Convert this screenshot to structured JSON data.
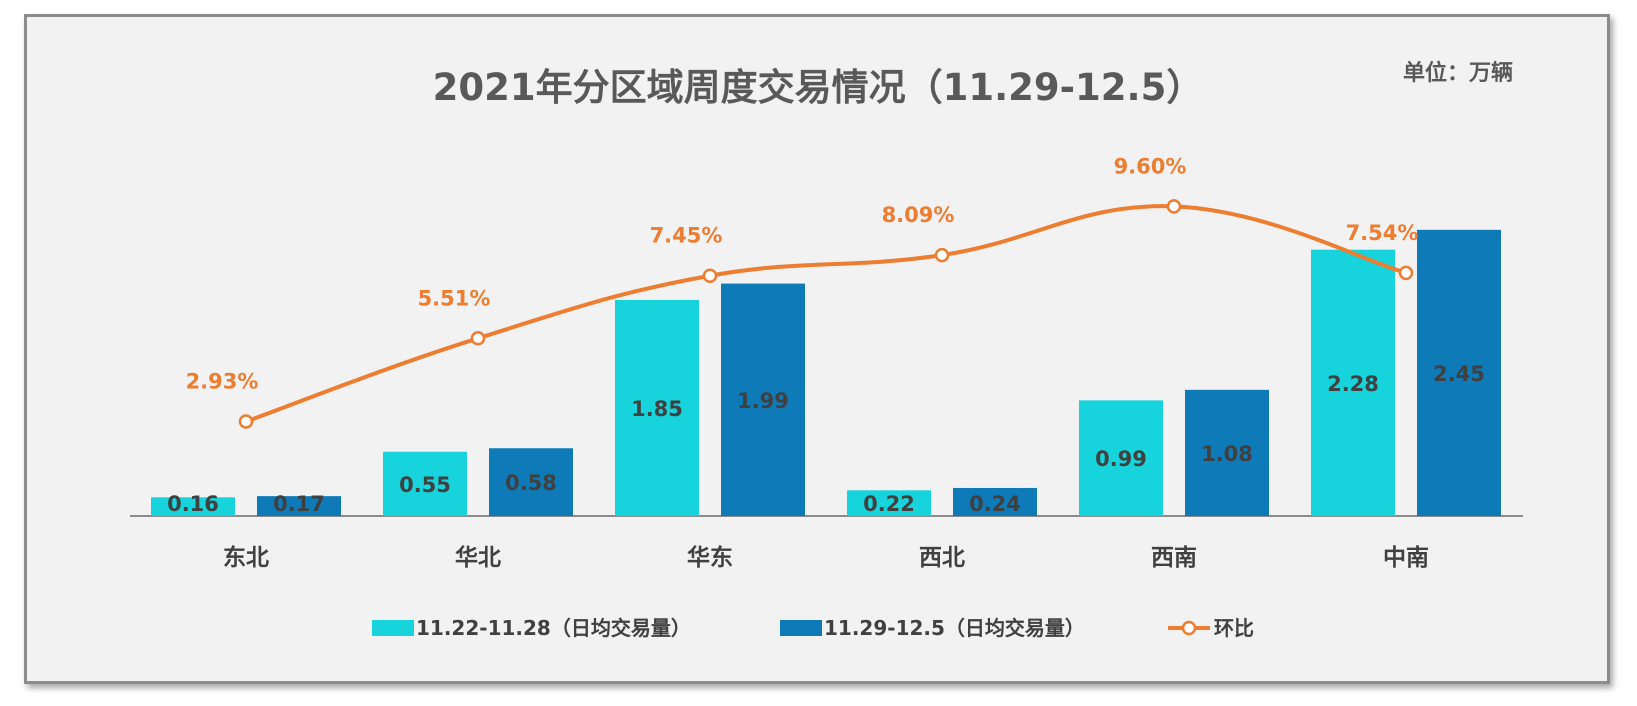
{
  "chart_data": {
    "type": "bar",
    "title": "2021年分区域周度交易情况（11.29-12.5）",
    "unit_label": "单位：万辆",
    "categories": [
      "东北",
      "华北",
      "华东",
      "西北",
      "西南",
      "中南"
    ],
    "series": [
      {
        "name": "11.22-11.28（日均交易量）",
        "type": "bar",
        "color": "#17d4dc",
        "values": [
          0.16,
          0.55,
          1.85,
          0.22,
          0.99,
          2.28
        ],
        "labels": [
          "0.16",
          "0.55",
          "1.85",
          "0.22",
          "0.99",
          "2.28"
        ]
      },
      {
        "name": "11.29-12.5（日均交易量）",
        "type": "bar",
        "color": "#0e7ab8",
        "values": [
          0.17,
          0.58,
          1.99,
          0.24,
          1.08,
          2.45
        ],
        "labels": [
          "0.17",
          "0.58",
          "1.99",
          "0.24",
          "1.08",
          "2.45"
        ]
      },
      {
        "name": "环比",
        "type": "line",
        "color": "#ed7d31",
        "values": [
          2.93,
          5.51,
          7.45,
          8.09,
          9.6,
          7.54
        ],
        "labels": [
          "2.93%",
          "5.51%",
          "7.45%",
          "8.09%",
          "9.60%",
          "7.54%"
        ]
      }
    ],
    "ylim": [
      0,
      2.5
    ],
    "ylim_secondary": [
      0,
      12
    ],
    "grid": false,
    "legend_position": "bottom"
  }
}
